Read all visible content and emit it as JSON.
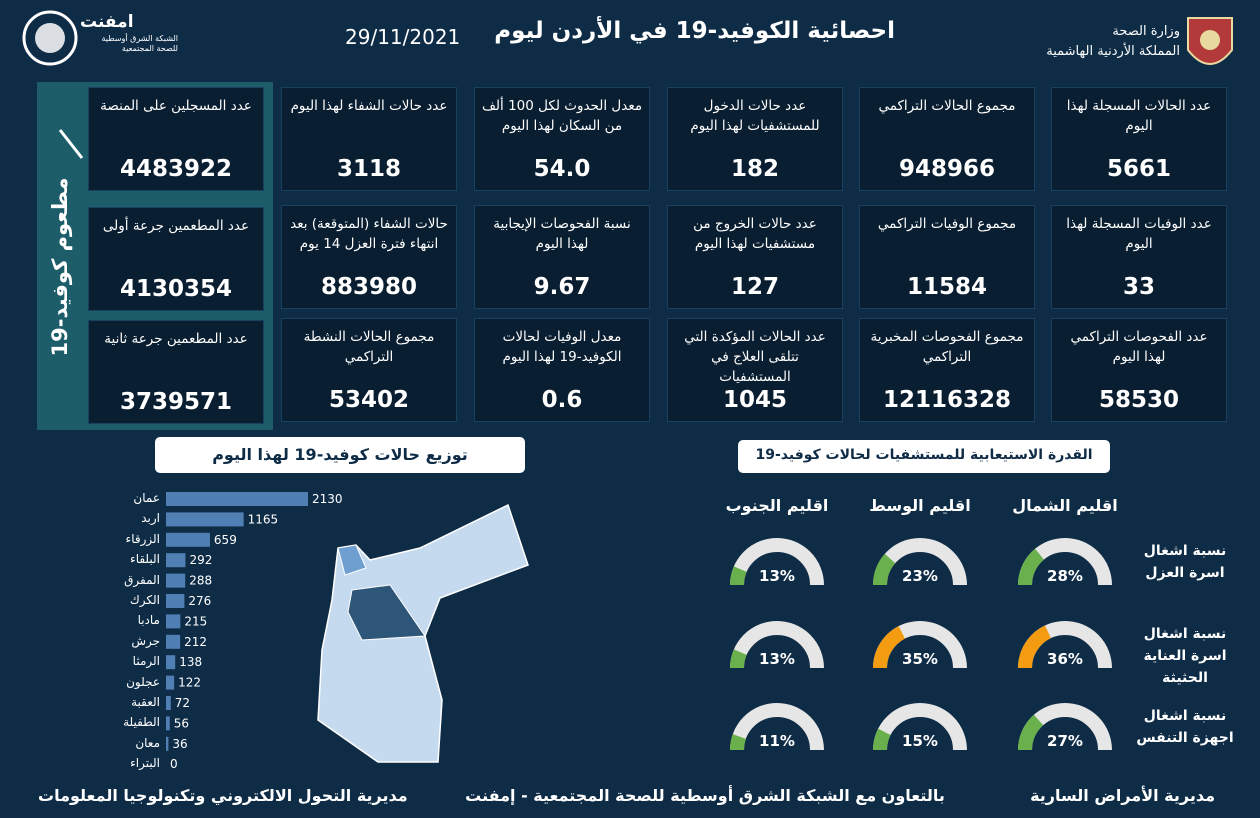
{
  "header": {
    "title": "احصائية الكوفيد-19 في الأردن ليوم",
    "date": "29/11/2021",
    "ministry": "وزارة الصحة",
    "kingdom": "المملكة الأردنية الهاشمية",
    "logo_name": "امفنت",
    "logo_subtitle": "الشبكة الشرق أوسطية للصحة المجتمعية"
  },
  "stats": [
    {
      "label": "عدد الحالات المسجلة لهذا اليوم",
      "value": 5661
    },
    {
      "label": "مجموع الحالات التراكمي",
      "value": 948966
    },
    {
      "label": "عدد حالات الدخول للمستشفيات لهذا اليوم",
      "value": 182
    },
    {
      "label": "معدل الحدوث لكل 100 ألف من السكان لهذا اليوم",
      "value": "54.0"
    },
    {
      "label": "عدد حالات الشفاء لهذا اليوم",
      "value": 3118
    },
    {
      "label": "عدد الوفيات المسجلة لهذا اليوم",
      "value": 33
    },
    {
      "label": "مجموع الوفيات التراكمي",
      "value": 11584
    },
    {
      "label": "عدد حالات الخروج من مستشفيات لهذا اليوم",
      "value": 127
    },
    {
      "label": "نسبة الفحوصات الإيجابية لهذا اليوم",
      "value": 9.67
    },
    {
      "label": "حالات الشفاء (المتوقعة) بعد انتهاء فترة العزل 14 يوم",
      "value": 883980
    },
    {
      "label": "عدد الفحوصات التراكمي لهذا اليوم",
      "value": 58530
    },
    {
      "label": "مجموع الفحوصات المخبرية التراكمي",
      "value": 12116328
    },
    {
      "label": "عدد الحالات المؤكدة التي تتلقى العلاج في المستشفيات",
      "value": 1045
    },
    {
      "label": "معدل الوفيات لحالات الكوفيد-19 لهذا اليوم",
      "value": 0.6
    },
    {
      "label": "مجموع الحالات النشطة التراكمي",
      "value": 53402
    }
  ],
  "vaccination": {
    "title": "مطعوم كوفيد-19",
    "cards": [
      {
        "label": "عدد المسجلين على المنصة",
        "value": 4483922
      },
      {
        "label": "عدد المطعمين جرعة أولى",
        "value": 4130354
      },
      {
        "label": "عدد المطعمين جرعة ثانية",
        "value": 3739571
      }
    ]
  },
  "chart_data": [
    {
      "type": "bar",
      "title": "توزيع حالات كوفيد-19 لهذا اليوم",
      "categories": [
        "عمان",
        "اربد",
        "الزرقاء",
        "البلقاء",
        "المفرق",
        "الكرك",
        "مادبا",
        "جرش",
        "الرمثا",
        "عجلون",
        "العقبة",
        "الطفيلة",
        "معان",
        "البتراء"
      ],
      "values": [
        2130,
        1165,
        659,
        292,
        288,
        276,
        215,
        212,
        138,
        122,
        72,
        56,
        36,
        0
      ],
      "color": "#4f7fb3"
    },
    {
      "type": "gauge",
      "title": "القدرة الاستيعابية للمستشفيات لحالات كوفيد-19",
      "categories": [
        "اقليم الشمال",
        "اقليم الوسط",
        "اقليم الجنوب"
      ],
      "ylim": [
        0,
        100
      ],
      "series": [
        {
          "name": "نسبة اشغال اسرة العزل",
          "values": [
            28,
            23,
            13
          ],
          "value_labels": [
            "28%",
            "23%",
            "13%"
          ],
          "colors": [
            "#6ab04c",
            "#6ab04c",
            "#6ab04c"
          ]
        },
        {
          "name": "نسبة اشغال اسرة العناية الحثيثة",
          "values": [
            36,
            35,
            13
          ],
          "value_labels": [
            "36%",
            "35%",
            "13%"
          ],
          "colors": [
            "#f39c12",
            "#f39c12",
            "#6ab04c"
          ]
        },
        {
          "name": "نسبة اشغال اجهزة التنفس",
          "values": [
            27,
            15,
            11
          ],
          "value_labels": [
            "27%",
            "15%",
            "11%"
          ],
          "colors": [
            "#6ab04c",
            "#6ab04c",
            "#6ab04c"
          ]
        }
      ]
    }
  ],
  "footer": {
    "right": "مديرية الأمراض السارية",
    "center": "بالتعاون مع الشبكة الشرق أوسطية للصحة المجتمعية - إمفنت",
    "left": "مديرية التحول الالكتروني وتكنولوجيا المعلومات"
  }
}
